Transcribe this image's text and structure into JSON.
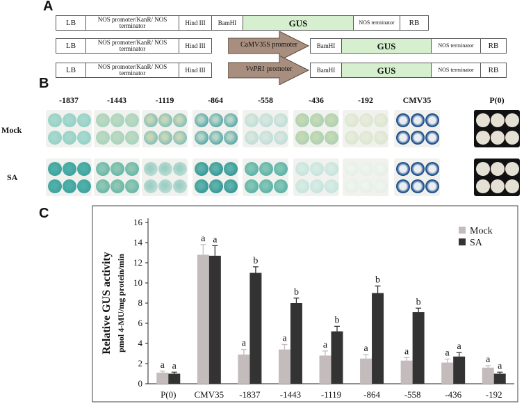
{
  "panel_labels": {
    "a": "A",
    "b": "B",
    "c": "C"
  },
  "constructs": [
    {
      "lb": "LB",
      "nos_kanr": "NOS promoter/KanR/ NOS terminator",
      "hind": "Hind III",
      "bam": "BamHI",
      "gus": "GUS",
      "nos_term": "NOS terminator",
      "rb": "RB"
    },
    {
      "lb": "LB",
      "nos_kanr": "NOS promoter/KanR/ NOS terminator",
      "hind": "Hind III",
      "promoter": "CaMV35S promoter",
      "bam": "BamHI",
      "gus": "GUS",
      "nos_term": "NOS terminator",
      "rb": "RB"
    },
    {
      "lb": "LB",
      "nos_kanr": "NOS promoter/KanR/ NOS terminator",
      "hind": "Hind III",
      "promoter": "VvPR1 promoter",
      "promoter_italic": "VvPR1",
      "promoter_rest": " promoter",
      "bam": "BamHI",
      "gus": "GUS",
      "nos_term": "NOS terminator",
      "rb": "RB"
    }
  ],
  "staining": {
    "columns": [
      "-1837",
      "-1443",
      "-1119",
      "-864",
      "-558",
      "-436",
      "-192",
      "CMV35",
      "P(0)"
    ],
    "rows": [
      "Mock",
      "SA"
    ]
  },
  "chart_data": {
    "type": "bar",
    "categories": [
      "P(0)",
      "CMV35",
      "-1837",
      "-1443",
      "-1119",
      "-864",
      "-558",
      "-436",
      "-192"
    ],
    "series": [
      {
        "name": "Mock",
        "color": "#c4bcbc",
        "values": [
          1.1,
          12.8,
          2.9,
          3.4,
          2.8,
          2.5,
          2.3,
          2.1,
          1.6
        ],
        "errors": [
          0.15,
          1.0,
          0.5,
          0.5,
          0.45,
          0.4,
          0.3,
          0.35,
          0.2
        ],
        "letters": [
          "a",
          "a",
          "a",
          "a",
          "a",
          "a",
          "a",
          "a",
          "a"
        ]
      },
      {
        "name": "SA",
        "color": "#333333",
        "values": [
          1.0,
          12.7,
          11.0,
          8.0,
          5.2,
          9.0,
          7.1,
          2.7,
          1.0
        ],
        "errors": [
          0.15,
          1.0,
          0.6,
          0.5,
          0.5,
          0.7,
          0.4,
          0.4,
          0.15
        ],
        "letters": [
          "a",
          "a",
          "b",
          "b",
          "b",
          "b",
          "b",
          "a",
          "a"
        ]
      }
    ],
    "ylabel_line1": "Relative GUS activity",
    "ylabel_line2": "pmol 4-MU/mg protein/min",
    "ylim": [
      0,
      16
    ],
    "yticks": [
      "0",
      "2",
      "4",
      "6",
      "8",
      "10",
      "12",
      "14",
      "16"
    ],
    "legend": [
      "Mock",
      "SA"
    ]
  }
}
